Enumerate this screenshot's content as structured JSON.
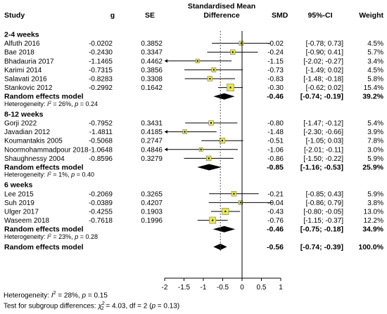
{
  "chart_data": {
    "type": "forest",
    "headers": {
      "study": "Study",
      "g": "g",
      "se": "SE",
      "plot_line1": "Standardised Mean",
      "plot_line2": "Difference",
      "smd": "SMD",
      "ci": "95%-CI",
      "weight": "Weight"
    },
    "xlim": [
      -2,
      1
    ],
    "xticks": [
      "-2",
      "-1.5",
      "-1",
      "-0.5",
      "0",
      "0.5",
      "1"
    ],
    "null_value": 0,
    "overall_reference": -0.56,
    "groups": [
      {
        "title": "2-4 weeks",
        "studies": [
          {
            "name": "Alfuth 2016",
            "g": "-0.0202",
            "se": "0.3852",
            "smd": "-0.02",
            "ci": "[-0.78; 0.73]",
            "weight": "4.5%",
            "est": -0.02,
            "lo": -0.78,
            "hi": 0.73,
            "w": 4.5
          },
          {
            "name": "Bae 2018",
            "g": "-0.2430",
            "se": "0.3347",
            "smd": "-0.24",
            "ci": "[-0.90; 0.41]",
            "weight": "5.7%",
            "est": -0.24,
            "lo": -0.9,
            "hi": 0.41,
            "w": 5.7
          },
          {
            "name": "Bhadauria 2017",
            "g": "-1.1465",
            "se": "0.4462",
            "smd": "-1.15",
            "ci": "[-2.02; -0.27]",
            "weight": "3.4%",
            "est": -1.15,
            "lo": -2.02,
            "hi": -0.27,
            "w": 3.4
          },
          {
            "name": "Karimi 2014",
            "g": "-0.7315",
            "se": "0.3856",
            "smd": "-0.73",
            "ci": "[-1.49; 0.02]",
            "weight": "4.5%",
            "est": -0.73,
            "lo": -1.49,
            "hi": 0.02,
            "w": 4.5
          },
          {
            "name": "Salavati 2016",
            "g": "-0.8283",
            "se": "0.3308",
            "smd": "-0.83",
            "ci": "[-1.48; -0.18]",
            "weight": "5.8%",
            "est": -0.83,
            "lo": -1.48,
            "hi": -0.18,
            "w": 5.8
          },
          {
            "name": "Stankovic 2012",
            "g": "-0.2992",
            "se": "0.1642",
            "smd": "-0.30",
            "ci": "[-0.62; 0.02]",
            "weight": "15.4%",
            "est": -0.3,
            "lo": -0.62,
            "hi": 0.02,
            "w": 15.4
          }
        ],
        "pooled": {
          "label": "Random effects model",
          "smd": "-0.46",
          "ci": "[-0.74; -0.19]",
          "weight": "39.2%",
          "est": -0.46,
          "lo": -0.74,
          "hi": -0.19
        },
        "heterogeneity_prefix": "Heterogeneity: ",
        "heterogeneity_i2": "= 26%, ",
        "heterogeneity_p": " = 0.24"
      },
      {
        "title": "8-12 weeks",
        "studies": [
          {
            "name": "Gorji 2022",
            "g": "-0.7952",
            "se": "0.3431",
            "smd": "-0.80",
            "ci": "[-1.47; -0.12]",
            "weight": "5.4%",
            "est": -0.8,
            "lo": -1.47,
            "hi": -0.12,
            "w": 5.4
          },
          {
            "name": "Javadian 2012",
            "g": "-1.4811",
            "se": "0.4185",
            "smd": "-1.48",
            "ci": "[-2.30; -0.66]",
            "weight": "3.9%",
            "est": -1.48,
            "lo": -2.3,
            "hi": -0.66,
            "w": 3.9
          },
          {
            "name": "Koumantakis 2005",
            "g": "-0.5068",
            "se": "0.2747",
            "smd": "-0.51",
            "ci": "[-1.05; 0.03]",
            "weight": "7.8%",
            "est": -0.51,
            "lo": -1.05,
            "hi": 0.03,
            "w": 7.8
          },
          {
            "name": "Noormohammadpour 2018",
            "g": "-1.0648",
            "se": "0.4846",
            "smd": "-1.06",
            "ci": "[-2.01; -0.11]",
            "weight": "3.0%",
            "est": -1.06,
            "lo": -2.01,
            "hi": -0.11,
            "w": 3.0
          },
          {
            "name": "Shaughnessy 2004",
            "g": "-0.8596",
            "se": "0.3279",
            "smd": "-0.86",
            "ci": "[-1.50; -0.22]",
            "weight": "5.9%",
            "est": -0.86,
            "lo": -1.5,
            "hi": -0.22,
            "w": 5.9
          }
        ],
        "pooled": {
          "label": "Random effects model",
          "smd": "-0.85",
          "ci": "[-1.16; -0.53]",
          "weight": "25.9%",
          "est": -0.85,
          "lo": -1.16,
          "hi": -0.53
        },
        "heterogeneity_prefix": "Heterogeneity: ",
        "heterogeneity_i2": "= 1%, ",
        "heterogeneity_p": " = 0.40"
      },
      {
        "title": "6 weeks",
        "studies": [
          {
            "name": "Lee 2015",
            "g": "-0.2069",
            "se": "0.3265",
            "smd": "-0.21",
            "ci": "[-0.85; 0.43]",
            "weight": "5.9%",
            "est": -0.21,
            "lo": -0.85,
            "hi": 0.43,
            "w": 5.9
          },
          {
            "name": "Suh 2019",
            "g": "-0.0389",
            "se": "0.4207",
            "smd": "-0.04",
            "ci": "[-0.86; 0.79]",
            "weight": "3.8%",
            "est": -0.04,
            "lo": -0.86,
            "hi": 0.79,
            "w": 3.8
          },
          {
            "name": "Ulger 2017",
            "g": "-0.4255",
            "se": "0.1903",
            "smd": "-0.43",
            "ci": "[-0.80; -0.05]",
            "weight": "13.0%",
            "est": -0.43,
            "lo": -0.8,
            "hi": -0.05,
            "w": 13.0
          },
          {
            "name": "Waseem 2018",
            "g": "-0.7618",
            "se": "0.1996",
            "smd": "-0.76",
            "ci": "[-1.15; -0.37]",
            "weight": "12.2%",
            "est": -0.76,
            "lo": -1.15,
            "hi": -0.37,
            "w": 12.2
          }
        ],
        "pooled": {
          "label": "Random effects model",
          "smd": "-0.46",
          "ci": "[-0.75; -0.18]",
          "weight": "34.9%",
          "est": -0.46,
          "lo": -0.75,
          "hi": -0.18
        },
        "heterogeneity_prefix": "Heterogeneity: ",
        "heterogeneity_i2": "= 23%, ",
        "heterogeneity_p": " = 0.28"
      }
    ],
    "overall": {
      "label": "Random effects model",
      "smd": "-0.56",
      "ci": "[-0.74; -0.39]",
      "weight": "100.0%",
      "est": -0.56,
      "lo": -0.74,
      "hi": -0.39
    },
    "footer": {
      "heterogeneity_prefix": "Heterogeneity: ",
      "heterogeneity_i2": "= 28%, ",
      "heterogeneity_p": " = 0.15",
      "subgroup_prefix": "Test for subgroup differences: ",
      "subgroup_value": " = 4.03, df = 2 (",
      "subgroup_p": " = 0.13)"
    },
    "colors": {
      "box": "#e8e84a",
      "box_stroke": "#777777",
      "line": "#000000",
      "ref_line": "#555555"
    }
  }
}
